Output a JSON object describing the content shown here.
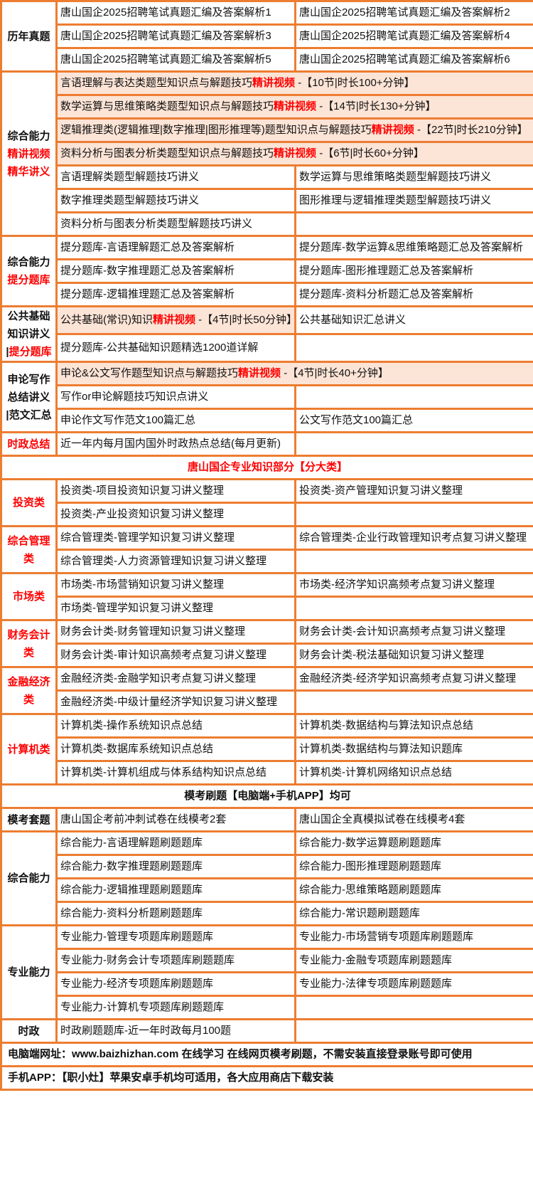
{
  "colors": {
    "border": "#ED7D31",
    "highlight_fill": "#FCE4D6",
    "accent_red": "#FF0000"
  },
  "blocks": [
    {
      "type": "section",
      "label": [
        {
          "t": "历年真题"
        }
      ],
      "rows": [
        [
          "唐山国企2025招聘笔试真题汇编及答案解析1",
          "唐山国企2025招聘笔试真题汇编及答案解析2"
        ],
        [
          "唐山国企2025招聘笔试真题汇编及答案解析3",
          "唐山国企2025招聘笔试真题汇编及答案解析4"
        ],
        [
          "唐山国企2025招聘笔试真题汇编及答案解析5",
          "唐山国企2025招聘笔试真题汇编及答案解析6"
        ]
      ]
    },
    {
      "type": "section",
      "label": [
        {
          "t": "综合能力"
        },
        {
          "t": "精讲视频",
          "red": true
        },
        {
          "t": "精华讲义",
          "red": true
        }
      ],
      "rows": [
        [
          {
            "span": 2,
            "fill": true,
            "parts": [
              {
                "t": "言语理解与表达类题型知识点与解题技巧"
              },
              {
                "t": "精讲视频",
                "hl": true
              },
              {
                "t": " -【10节|时长100+分钟】"
              }
            ]
          }
        ],
        [
          {
            "span": 2,
            "fill": true,
            "parts": [
              {
                "t": "数学运算与思维策略类题型知识点与解题技巧"
              },
              {
                "t": "精讲视频",
                "hl": true
              },
              {
                "t": " -【14节|时长130+分钟】"
              }
            ]
          }
        ],
        [
          {
            "span": 2,
            "fill": true,
            "parts": [
              {
                "t": "逻辑推理类(逻辑推理|数字推理|图形推理等)题型知识点与解题技巧"
              },
              {
                "t": "精讲视频",
                "hl": true
              },
              {
                "t": " -【22节|时长210分钟】"
              }
            ]
          }
        ],
        [
          {
            "span": 2,
            "fill": true,
            "parts": [
              {
                "t": "资料分析与图表分析类题型知识点与解题技巧"
              },
              {
                "t": "精讲视频",
                "hl": true
              },
              {
                "t": " -【6节|时长60+分钟】"
              }
            ]
          }
        ],
        [
          "言语理解类题型解题技巧讲义",
          "数学运算与思维策略类题型解题技巧讲义"
        ],
        [
          "数字推理类题型解题技巧讲义",
          "图形推理与逻辑推理类题型解题技巧讲义"
        ],
        [
          "资料分析与图表分析类题型解题技巧讲义",
          ""
        ]
      ]
    },
    {
      "type": "section",
      "label": [
        {
          "t": "综合能力"
        },
        {
          "t": "提分题库",
          "red": true
        }
      ],
      "rows": [
        [
          "提分题库-言语理解题汇总及答案解析",
          "提分题库-数学运算&思维策略题汇总及答案解析"
        ],
        [
          "提分题库-数字推理题汇总及答案解析",
          "提分题库-图形推理题汇总及答案解析"
        ],
        [
          "提分题库-逻辑推理题汇总及答案解析",
          "提分题库-资料分析题汇总及答案解析"
        ]
      ]
    },
    {
      "type": "section",
      "label": [
        {
          "t": "公共基础"
        },
        {
          "t": "知识讲义"
        },
        {
          "t": "|"
        },
        {
          "t": "提分题库",
          "red": true,
          "inline": true
        }
      ],
      "rows": [
        [
          {
            "fill": true,
            "parts": [
              {
                "t": "公共基础(常识)知识"
              },
              {
                "t": "精讲视频",
                "hl": true
              },
              {
                "t": " -【4节|时长50分钟】"
              }
            ]
          },
          "公共基础知识汇总讲义"
        ],
        [
          "提分题库-公共基础知识题精选1200道详解",
          ""
        ]
      ]
    },
    {
      "type": "section",
      "label": [
        {
          "t": "申论写作"
        },
        {
          "t": "总结讲义"
        },
        {
          "t": "|范文汇总"
        }
      ],
      "rows": [
        [
          {
            "span": 2,
            "fill": true,
            "parts": [
              {
                "t": "申论&公文写作题型知识点与解题技巧"
              },
              {
                "t": "精讲视频",
                "hl": true
              },
              {
                "t": " -【4节|时长40+分钟】"
              }
            ]
          }
        ],
        [
          "写作or申论解题技巧知识点讲义",
          ""
        ],
        [
          "申论作文写作范文100篇汇总",
          "公文写作范文100篇汇总"
        ]
      ]
    },
    {
      "type": "section",
      "label": [
        {
          "t": "时政总结",
          "red": true
        }
      ],
      "rows": [
        [
          "近一年内每月国内国外时政热点总结(每月更新)",
          ""
        ]
      ]
    },
    {
      "type": "banner",
      "text": "唐山国企专业知识部分【分大类】",
      "red": true
    },
    {
      "type": "section",
      "label": [
        {
          "t": "投资类",
          "red": true
        }
      ],
      "rows": [
        [
          "投资类-项目投资知识复习讲义整理",
          "投资类-资产管理知识复习讲义整理"
        ],
        [
          "投资类-产业投资知识复习讲义整理",
          ""
        ]
      ]
    },
    {
      "type": "section",
      "label": [
        {
          "t": "综合管理类",
          "red": true
        }
      ],
      "rows": [
        [
          "综合管理类-管理学知识复习讲义整理",
          "综合管理类-企业行政管理知识考点复习讲义整理"
        ],
        [
          "综合管理类-人力资源管理知识复习讲义整理",
          ""
        ]
      ]
    },
    {
      "type": "section",
      "label": [
        {
          "t": "市场类",
          "red": true
        }
      ],
      "rows": [
        [
          "市场类-市场营销知识复习讲义整理",
          "市场类-经济学知识高频考点复习讲义整理"
        ],
        [
          "市场类-管理学知识复习讲义整理",
          ""
        ]
      ]
    },
    {
      "type": "section",
      "label": [
        {
          "t": "财务会计类",
          "red": true
        }
      ],
      "rows": [
        [
          "财务会计类-财务管理知识复习讲义整理",
          "财务会计类-会计知识高频考点复习讲义整理"
        ],
        [
          "财务会计类-审计知识高频考点复习讲义整理",
          "财务会计类-税法基础知识复习讲义整理"
        ]
      ]
    },
    {
      "type": "section",
      "label": [
        {
          "t": "金融经济类",
          "red": true
        }
      ],
      "rows": [
        [
          "金融经济类-金融学知识考点复习讲义整理",
          "金融经济类-经济学知识高频考点复习讲义整理"
        ],
        [
          "金融经济类-中级计量经济学知识复习讲义整理",
          ""
        ]
      ]
    },
    {
      "type": "section",
      "label": [
        {
          "t": "计算机类",
          "red": true
        }
      ],
      "rows": [
        [
          "计算机类-操作系统知识点总结",
          "计算机类-数据结构与算法知识点总结"
        ],
        [
          "计算机类-数据库系统知识点总结",
          "计算机类-数据结构与算法知识题库"
        ],
        [
          "计算机类-计算机组成与体系结构知识点总结",
          "计算机类-计算机网络知识点总结"
        ]
      ]
    },
    {
      "type": "banner",
      "text": "模考刷题【电脑端+手机APP】均可",
      "red": false
    },
    {
      "type": "section",
      "label": [
        {
          "t": "模考套题"
        }
      ],
      "rows": [
        [
          "唐山国企考前冲刺试卷在线模考2套",
          "唐山国企全真模拟试卷在线模考4套"
        ]
      ]
    },
    {
      "type": "section",
      "label": [
        {
          "t": "综合能力"
        }
      ],
      "rows": [
        [
          "综合能力-言语理解题刷题题库",
          "综合能力-数学运算题刷题题库"
        ],
        [
          "综合能力-数字推理题刷题题库",
          "综合能力-图形推理题刷题题库"
        ],
        [
          "综合能力-逻辑推理题刷题题库",
          "综合能力-思维策略题刷题题库"
        ],
        [
          "综合能力-资料分析题刷题题库",
          "综合能力-常识题刷题题库"
        ]
      ]
    },
    {
      "type": "section",
      "label": [
        {
          "t": "专业能力"
        }
      ],
      "rows": [
        [
          "专业能力-管理专项题库刷题题库",
          "专业能力-市场营销专项题库刷题题库"
        ],
        [
          "专业能力-财务会计专项题库刷题题库",
          "专业能力-金融专项题库刷题题库"
        ],
        [
          "专业能力-经济专项题库刷题题库",
          "专业能力-法律专项题库刷题题库"
        ],
        [
          "专业能力-计算机专项题库刷题题库",
          ""
        ]
      ]
    },
    {
      "type": "section",
      "label": [
        {
          "t": "时政"
        }
      ],
      "rows": [
        [
          "时政刷题题库-近一年时政每月100题",
          ""
        ]
      ]
    },
    {
      "type": "note",
      "text": "电脑端网址：www.baizhizhan.com 在线学习 在线网页模考刷题，不需安装直接登录账号即可使用"
    },
    {
      "type": "note",
      "text": "手机APP：【职小灶】苹果安卓手机均可适用，各大应用商店下载安装"
    }
  ]
}
